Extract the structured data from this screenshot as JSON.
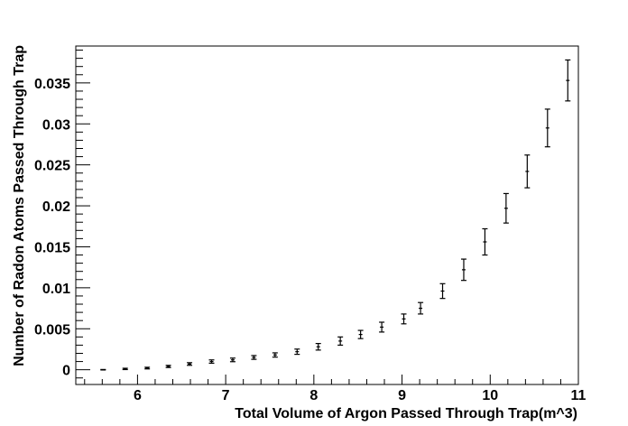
{
  "chart_data": {
    "type": "scatter",
    "title": "",
    "xlabel": "Total Volume of Argon Passed Through Trap(m^3)",
    "ylabel": "Number of Radon Atoms Passed Through Trap",
    "xlim": [
      5.3,
      11.0
    ],
    "ylim": [
      -0.0018,
      0.0395
    ],
    "xticks": [
      6,
      7,
      8,
      9,
      10,
      11
    ],
    "xtick_labels": [
      "6",
      "7",
      "8",
      "9",
      "10",
      "11"
    ],
    "yticks": [
      0,
      0.005,
      0.01,
      0.015,
      0.02,
      0.025,
      0.03,
      0.035
    ],
    "ytick_labels": [
      "0",
      "0.005",
      "0.01",
      "0.015",
      "0.02",
      "0.025",
      "0.03",
      "0.035"
    ],
    "grid": false,
    "error_bars": true,
    "points": [
      {
        "x": 5.61,
        "y": 0.0,
        "err": 3e-05
      },
      {
        "x": 5.86,
        "y": 0.0001,
        "err": 8e-05
      },
      {
        "x": 6.11,
        "y": 0.0002,
        "err": 0.0001
      },
      {
        "x": 6.35,
        "y": 0.0004,
        "err": 0.00013
      },
      {
        "x": 6.59,
        "y": 0.0007,
        "err": 0.00016
      },
      {
        "x": 6.84,
        "y": 0.001,
        "err": 0.0002
      },
      {
        "x": 7.08,
        "y": 0.0012,
        "err": 0.00022
      },
      {
        "x": 7.32,
        "y": 0.0015,
        "err": 0.00023
      },
      {
        "x": 7.56,
        "y": 0.0018,
        "err": 0.00026
      },
      {
        "x": 7.81,
        "y": 0.0022,
        "err": 0.00032
      },
      {
        "x": 8.05,
        "y": 0.0028,
        "err": 0.0004
      },
      {
        "x": 8.3,
        "y": 0.0035,
        "err": 0.0005
      },
      {
        "x": 8.53,
        "y": 0.0043,
        "err": 0.0005
      },
      {
        "x": 8.77,
        "y": 0.0052,
        "err": 0.0006
      },
      {
        "x": 9.02,
        "y": 0.0062,
        "err": 0.0006
      },
      {
        "x": 9.21,
        "y": 0.0075,
        "err": 0.0007
      },
      {
        "x": 9.46,
        "y": 0.0096,
        "err": 0.0009
      },
      {
        "x": 9.7,
        "y": 0.0122,
        "err": 0.0013
      },
      {
        "x": 9.94,
        "y": 0.0156,
        "err": 0.0016
      },
      {
        "x": 10.18,
        "y": 0.0197,
        "err": 0.0018
      },
      {
        "x": 10.42,
        "y": 0.0242,
        "err": 0.002
      },
      {
        "x": 10.65,
        "y": 0.0295,
        "err": 0.0023
      },
      {
        "x": 10.88,
        "y": 0.0353,
        "err": 0.0025
      }
    ]
  }
}
